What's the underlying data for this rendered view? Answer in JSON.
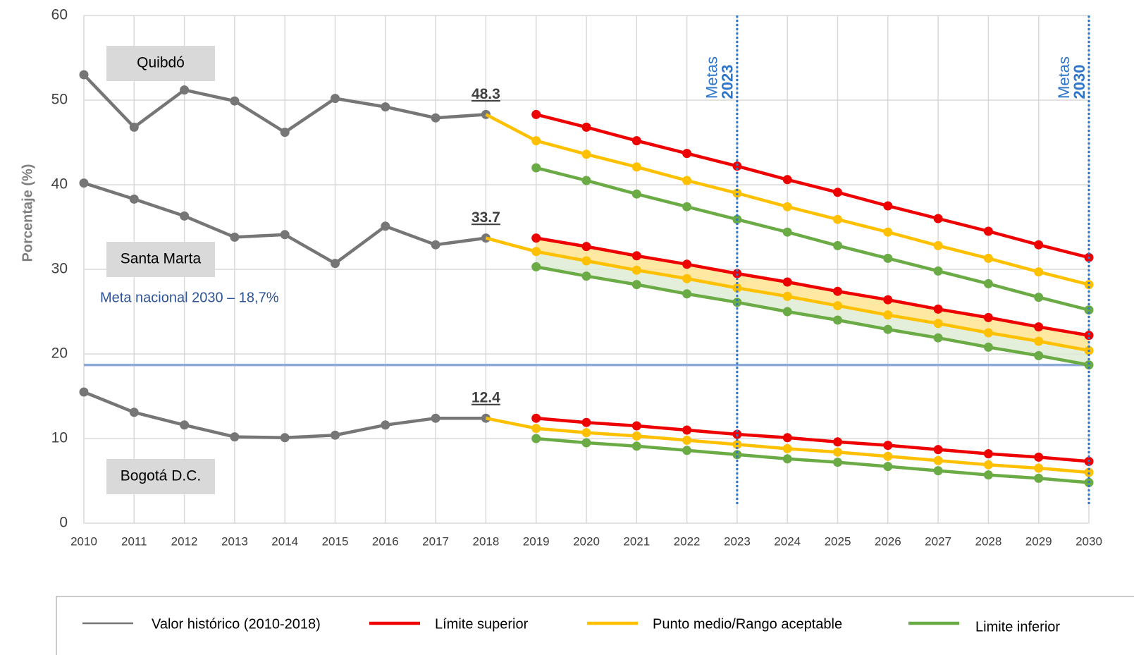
{
  "chart_data": {
    "type": "line",
    "y_label": "Porcentaje (%)",
    "x": [
      2010,
      2011,
      2012,
      2013,
      2014,
      2015,
      2016,
      2017,
      2018,
      2019,
      2020,
      2021,
      2022,
      2023,
      2024,
      2025,
      2026,
      2027,
      2028,
      2029,
      2030
    ],
    "xlim": [
      2010,
      2030
    ],
    "ylim": [
      0,
      60
    ],
    "yticks": [
      0,
      10,
      20,
      30,
      40,
      50,
      60
    ],
    "grid": true,
    "legend": [
      {
        "name": "Valor histórico (2010-2018)",
        "color": "#767676"
      },
      {
        "name": "Límite superior",
        "color": "#ee0000"
      },
      {
        "name": "Punto medio/Rango aceptable",
        "color": "#ffc000"
      },
      {
        "name": "Limite inferior",
        "color": "#6aab45"
      }
    ],
    "groups": [
      {
        "label": "Quibdó",
        "shaded": false,
        "historical": [
          53.0,
          46.8,
          51.2,
          49.9,
          46.2,
          50.2,
          49.2,
          47.9,
          48.3,
          null,
          null,
          null,
          null,
          null,
          null,
          null,
          null,
          null,
          null,
          null,
          null
        ],
        "upper": [
          null,
          null,
          null,
          null,
          null,
          null,
          null,
          null,
          null,
          48.3,
          46.8,
          45.2,
          43.7,
          42.2,
          40.6,
          39.1,
          37.5,
          36.0,
          34.5,
          32.9,
          31.4
        ],
        "mid": [
          null,
          null,
          null,
          null,
          null,
          null,
          null,
          null,
          48.3,
          45.2,
          43.6,
          42.1,
          40.5,
          39.0,
          37.4,
          35.9,
          34.4,
          32.8,
          31.3,
          29.7,
          28.2
        ],
        "lower": [
          null,
          null,
          null,
          null,
          null,
          null,
          null,
          null,
          null,
          42.0,
          40.5,
          38.9,
          37.4,
          35.9,
          34.4,
          32.8,
          31.3,
          29.8,
          28.3,
          26.7,
          25.2
        ]
      },
      {
        "label": "Santa Marta",
        "shaded": true,
        "historical": [
          40.2,
          38.3,
          36.3,
          33.8,
          34.1,
          30.7,
          35.1,
          32.9,
          33.7,
          null,
          null,
          null,
          null,
          null,
          null,
          null,
          null,
          null,
          null,
          null,
          null
        ],
        "upper": [
          null,
          null,
          null,
          null,
          null,
          null,
          null,
          null,
          null,
          33.7,
          32.7,
          31.6,
          30.6,
          29.5,
          28.5,
          27.4,
          26.4,
          25.3,
          24.3,
          23.2,
          22.2
        ],
        "mid": [
          null,
          null,
          null,
          null,
          null,
          null,
          null,
          null,
          33.7,
          32.1,
          31.0,
          29.9,
          28.9,
          27.8,
          26.8,
          25.7,
          24.6,
          23.6,
          22.5,
          21.5,
          20.4
        ],
        "lower": [
          null,
          null,
          null,
          null,
          null,
          null,
          null,
          null,
          null,
          30.3,
          29.2,
          28.2,
          27.1,
          26.1,
          25.0,
          24.0,
          22.9,
          21.9,
          20.8,
          19.8,
          18.7
        ]
      },
      {
        "label": "Bogotá D.C.",
        "shaded": false,
        "historical": [
          15.5,
          13.1,
          11.6,
          10.2,
          10.1,
          10.4,
          11.6,
          12.4,
          12.4,
          null,
          null,
          null,
          null,
          null,
          null,
          null,
          null,
          null,
          null,
          null,
          null
        ],
        "upper": [
          null,
          null,
          null,
          null,
          null,
          null,
          null,
          null,
          null,
          12.4,
          11.9,
          11.5,
          11.0,
          10.5,
          10.1,
          9.6,
          9.2,
          8.7,
          8.2,
          7.8,
          7.3
        ],
        "mid": [
          null,
          null,
          null,
          null,
          null,
          null,
          null,
          null,
          12.4,
          11.2,
          10.7,
          10.3,
          9.8,
          9.3,
          8.8,
          8.4,
          7.9,
          7.4,
          6.9,
          6.5,
          6.0
        ],
        "lower": [
          null,
          null,
          null,
          null,
          null,
          null,
          null,
          null,
          null,
          10.0,
          9.5,
          9.1,
          8.6,
          8.1,
          7.6,
          7.2,
          6.7,
          6.2,
          5.7,
          5.3,
          4.8
        ]
      }
    ],
    "national_target": {
      "value": 18.7,
      "label": "Meta nacional 2030 – 18,7%",
      "color": "#8eaadb"
    },
    "targets": [
      {
        "x": 2023,
        "label": "Metas"
      },
      {
        "x": 2030,
        "label": "Metas"
      }
    ],
    "target_color": "#2e75c9"
  }
}
